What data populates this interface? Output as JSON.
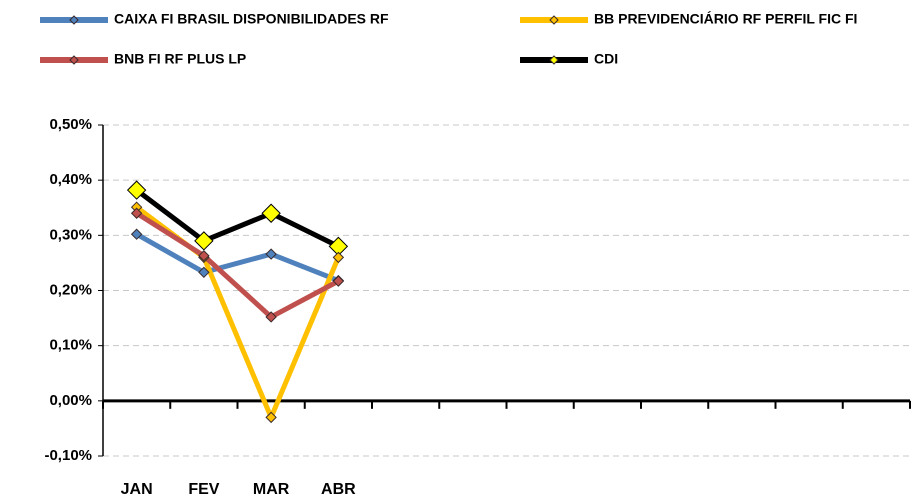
{
  "chart_data": {
    "type": "line",
    "categories": [
      "JAN",
      "FEV",
      "MAR",
      "ABR",
      null,
      null,
      null,
      null,
      null,
      null,
      null,
      null
    ],
    "series": [
      {
        "name": "CAIXA FI BRASIL DISPONIBILIDADES RF",
        "color": "#4f81bd",
        "values": [
          0.302,
          0.233,
          0.266,
          0.218,
          null,
          null,
          null,
          null,
          null,
          null,
          null,
          null
        ]
      },
      {
        "name": "BB PREVIDENCIÁRIO RF PERFIL FIC FI",
        "color": "#ffc000",
        "values": [
          0.351,
          0.26,
          -0.03,
          0.26,
          null,
          null,
          null,
          null,
          null,
          null,
          null,
          null
        ]
      },
      {
        "name": "BNB FI RF PLUS LP",
        "color": "#c0504d",
        "values": [
          0.34,
          0.263,
          0.152,
          0.217,
          null,
          null,
          null,
          null,
          null,
          null,
          null,
          null
        ]
      },
      {
        "name": "CDI",
        "color": "#000000",
        "values": [
          0.382,
          0.29,
          0.34,
          0.28,
          null,
          null,
          null,
          null,
          null,
          null,
          null,
          null
        ]
      }
    ],
    "ylim": [
      -0.1,
      0.5
    ],
    "yticks": [
      {
        "value": -0.1,
        "label": "-0,10%"
      },
      {
        "value": 0,
        "label": "0,00%"
      },
      {
        "value": 0.1,
        "label": "0,10%"
      },
      {
        "value": 0.2,
        "label": "0,20%"
      },
      {
        "value": 0.3,
        "label": "0,30%"
      },
      {
        "value": 0.4,
        "label": "0,40%"
      },
      {
        "value": 0.5,
        "label": "0,50%"
      }
    ],
    "grid": true
  }
}
